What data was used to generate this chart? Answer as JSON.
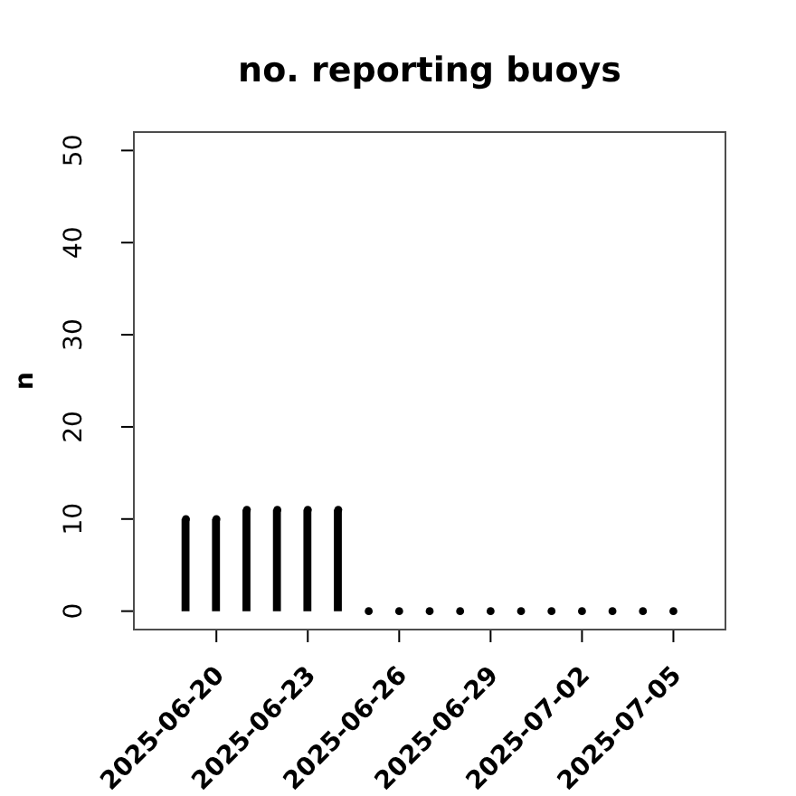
{
  "chart_data": {
    "type": "lollipop",
    "title": "no. reporting buoys",
    "ylabel": "n",
    "x": [
      "2025-06-19",
      "2025-06-20",
      "2025-06-21",
      "2025-06-22",
      "2025-06-23",
      "2025-06-24",
      "2025-06-25",
      "2025-06-26",
      "2025-06-27",
      "2025-06-28",
      "2025-06-29",
      "2025-06-30",
      "2025-07-01",
      "2025-07-02",
      "2025-07-03",
      "2025-07-04",
      "2025-07-05"
    ],
    "values": [
      10,
      10,
      11,
      11,
      11,
      11,
      0,
      0,
      0,
      0,
      0,
      0,
      0,
      0,
      0,
      0,
      0
    ],
    "color": "#000000",
    "marker": "circle",
    "xlim": [
      "2025-06-17T07:00",
      "2025-07-06T17:00"
    ],
    "xticks": [
      "2025-06-20",
      "2025-06-23",
      "2025-06-26",
      "2025-06-29",
      "2025-07-02",
      "2025-07-05"
    ],
    "ylim": [
      -2,
      52
    ],
    "yticks": [
      0,
      10,
      20,
      30,
      40,
      50
    ]
  }
}
